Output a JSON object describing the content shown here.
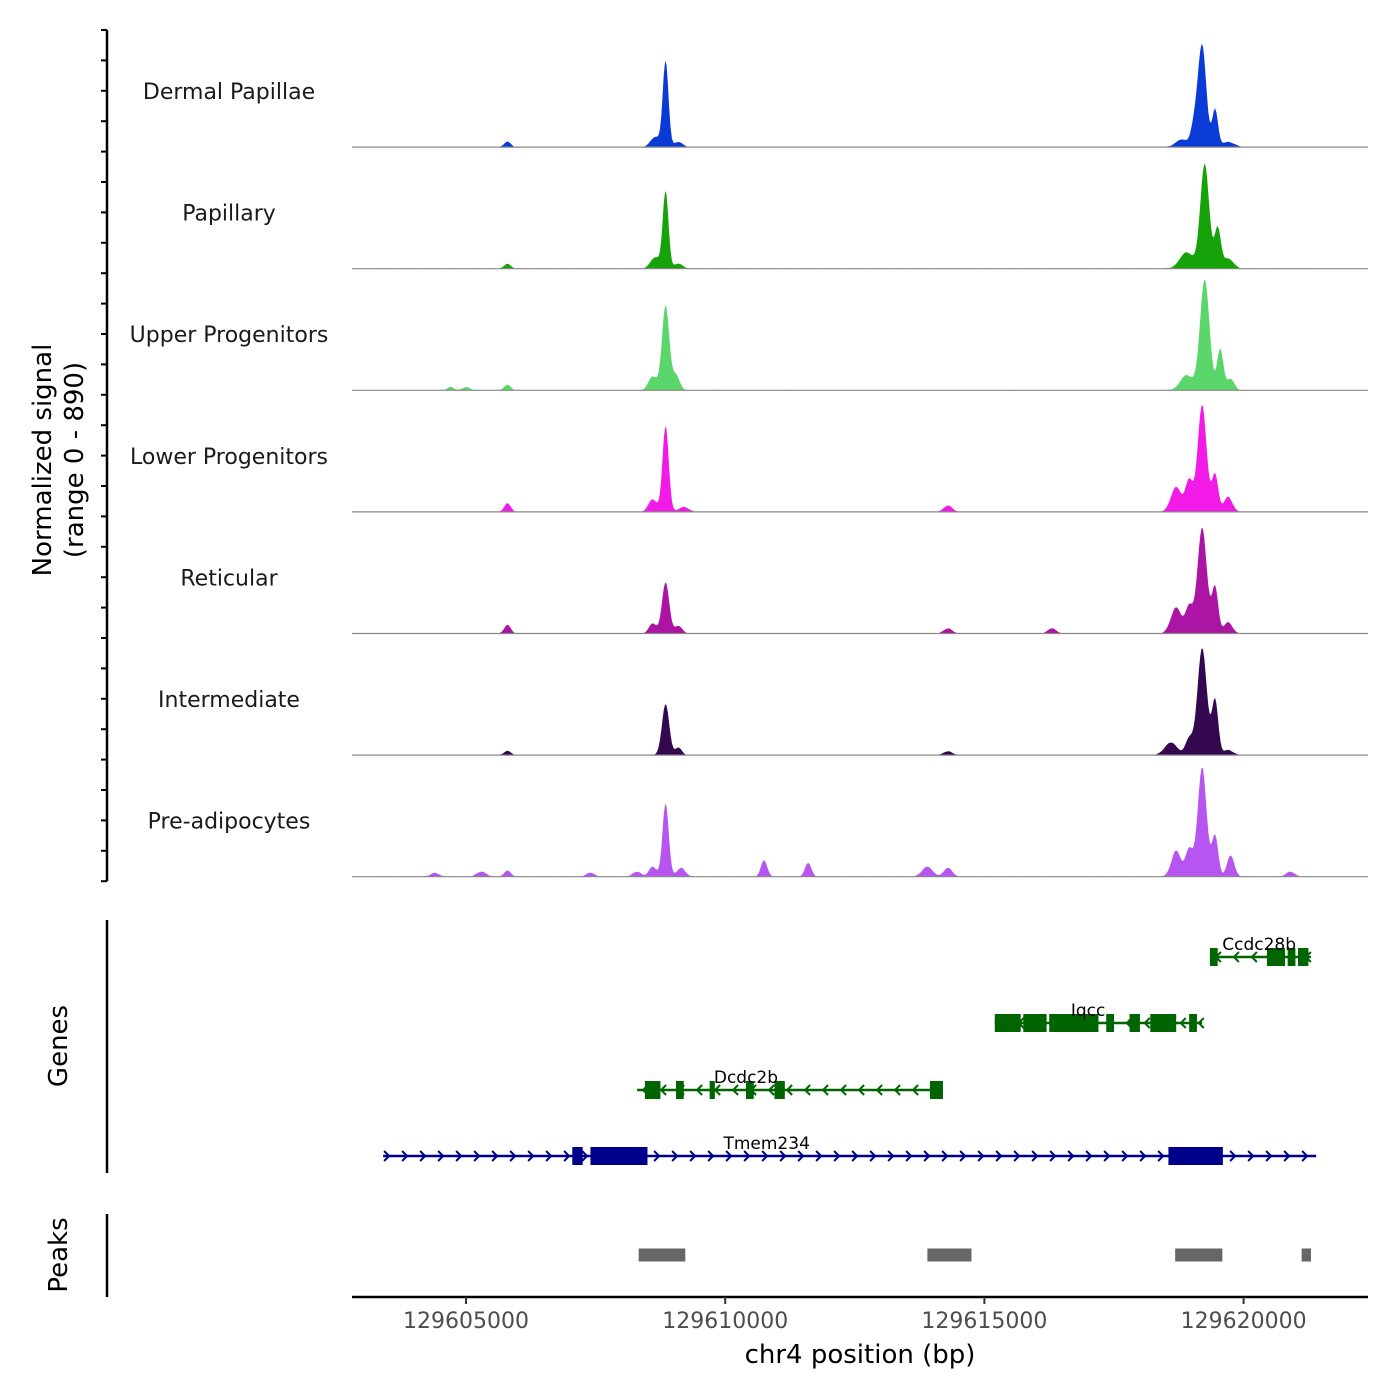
{
  "chart_data": {
    "type": "area",
    "title": "",
    "genome": "chr4",
    "region": [
      129602800,
      129622400
    ],
    "xlabel": "chr4 position (bp)",
    "x_ticks": [
      129605000,
      129610000,
      129615000,
      129620000
    ],
    "x_tick_labels": [
      "129605000",
      "129610000",
      "129615000",
      "129620000"
    ],
    "coverage": {
      "ylabel": "Normalized signal\n(range 0 - 890)",
      "ylabel_line1": "Normalized signal",
      "ylabel_line2": "(range 0 - 890)",
      "ylim": [
        0,
        890
      ],
      "baseline_color": "#888888",
      "tracks": [
        {
          "name": "Dermal Papillae",
          "color": "#0b3bd6",
          "peaks": [
            [
              129605800,
              45,
              60
            ],
            [
              129608650,
              80,
              90
            ],
            [
              129608850,
              690,
              55
            ],
            [
              129609100,
              40,
              80
            ],
            [
              129618800,
              60,
              110
            ],
            [
              129619050,
              160,
              70
            ],
            [
              129619200,
              810,
              80
            ],
            [
              129619450,
              300,
              55
            ],
            [
              129619700,
              40,
              120
            ]
          ]
        },
        {
          "name": "Papillary",
          "color": "#16a30a",
          "peaks": [
            [
              129605800,
              40,
              60
            ],
            [
              129608650,
              90,
              90
            ],
            [
              129608850,
              620,
              55
            ],
            [
              129609100,
              40,
              80
            ],
            [
              129618900,
              130,
              130
            ],
            [
              129619250,
              840,
              85
            ],
            [
              129619500,
              320,
              60
            ],
            [
              129619700,
              80,
              100
            ]
          ]
        },
        {
          "name": "Upper Progenitors",
          "color": "#5ad66a",
          "peaks": [
            [
              129604700,
              25,
              60
            ],
            [
              129605000,
              25,
              70
            ],
            [
              129605800,
              45,
              60
            ],
            [
              129608600,
              110,
              80
            ],
            [
              129608850,
              680,
              70
            ],
            [
              129609050,
              120,
              70
            ],
            [
              129618900,
              120,
              120
            ],
            [
              129619250,
              890,
              90
            ],
            [
              129619550,
              330,
              60
            ],
            [
              129619750,
              90,
              70
            ]
          ]
        },
        {
          "name": "Lower Progenitors",
          "color": "#f21ae6",
          "peaks": [
            [
              129605800,
              70,
              60
            ],
            [
              129608600,
              100,
              80
            ],
            [
              129608850,
              690,
              60
            ],
            [
              129609200,
              40,
              90
            ],
            [
              129614300,
              50,
              80
            ],
            [
              129618700,
              200,
              100
            ],
            [
              129618950,
              250,
              70
            ],
            [
              129619200,
              860,
              85
            ],
            [
              129619450,
              300,
              60
            ],
            [
              129619700,
              120,
              80
            ]
          ]
        },
        {
          "name": "Reticular",
          "color": "#ac14a3",
          "peaks": [
            [
              129605800,
              70,
              60
            ],
            [
              129608600,
              80,
              70
            ],
            [
              129608850,
              410,
              70
            ],
            [
              129609100,
              60,
              70
            ],
            [
              129614300,
              40,
              80
            ],
            [
              129616300,
              40,
              80
            ],
            [
              129618700,
              210,
              100
            ],
            [
              129618950,
              210,
              70
            ],
            [
              129619200,
              850,
              90
            ],
            [
              129619450,
              370,
              60
            ],
            [
              129619700,
              90,
              80
            ]
          ]
        },
        {
          "name": "Intermediate",
          "color": "#33084f",
          "peaks": [
            [
              129605800,
              35,
              60
            ],
            [
              129608850,
              410,
              70
            ],
            [
              129609100,
              60,
              60
            ],
            [
              129614300,
              30,
              80
            ],
            [
              129618600,
              100,
              120
            ],
            [
              129618950,
              130,
              70
            ],
            [
              129619200,
              860,
              90
            ],
            [
              129619450,
              440,
              60
            ],
            [
              129619700,
              40,
              90
            ]
          ]
        },
        {
          "name": "Pre-adipocytes",
          "color": "#b655ef",
          "peaks": [
            [
              129604400,
              30,
              80
            ],
            [
              129605300,
              40,
              90
            ],
            [
              129605800,
              50,
              60
            ],
            [
              129607400,
              30,
              80
            ],
            [
              129608300,
              40,
              80
            ],
            [
              129608600,
              80,
              70
            ],
            [
              129608850,
              590,
              60
            ],
            [
              129609150,
              70,
              80
            ],
            [
              129610750,
              130,
              60
            ],
            [
              129611600,
              110,
              60
            ],
            [
              129613900,
              80,
              100
            ],
            [
              129614300,
              70,
              80
            ],
            [
              129618700,
              210,
              90
            ],
            [
              129618950,
              220,
              70
            ],
            [
              129619200,
              880,
              85
            ],
            [
              129619450,
              330,
              60
            ],
            [
              129619750,
              170,
              70
            ],
            [
              129620900,
              40,
              80
            ]
          ]
        }
      ]
    },
    "genes": {
      "ylabel": "Genes",
      "color_forward": "#00008b",
      "color_reverse": "#006400",
      "items": [
        {
          "name": "Ccdc28b",
          "strand": "-",
          "row": 0,
          "start": 129619350,
          "end": 129621300,
          "label_pos": 129620300,
          "exons": [
            [
              129619350,
              129619500
            ],
            [
              129620450,
              129620800
            ],
            [
              129620850,
              129621000
            ],
            [
              129621050,
              129621250
            ]
          ]
        },
        {
          "name": "Iqcc",
          "strand": "-",
          "row": 1,
          "start": 129615200,
          "end": 129619200,
          "label_pos": 129617000,
          "exons": [
            [
              129615200,
              129615700
            ],
            [
              129615750,
              129616200
            ],
            [
              129616250,
              129617200
            ],
            [
              129617350,
              129617500
            ],
            [
              129617800,
              129618000
            ],
            [
              129618200,
              129618700
            ],
            [
              129618950,
              129619100
            ]
          ]
        },
        {
          "name": "Dcdc2b",
          "strand": "-",
          "row": 2,
          "start": 129608300,
          "end": 129614200,
          "label_pos": 129610400,
          "exons": [
            [
              129608450,
              129608750
            ],
            [
              129609050,
              129609200
            ],
            [
              129609700,
              129609800
            ],
            [
              129610400,
              129610550
            ],
            [
              129610950,
              129611150
            ],
            [
              129613950,
              129614200
            ]
          ]
        },
        {
          "name": "Tmem234",
          "strand": "+",
          "row": 3,
          "start": 129603400,
          "end": 129621400,
          "label_pos": 129610800,
          "exons": [
            [
              129607050,
              129607250
            ],
            [
              129607400,
              129608500
            ],
            [
              129618550,
              129619600
            ]
          ]
        }
      ]
    },
    "peak_regions": {
      "ylabel": "Peaks",
      "color": "#666666",
      "regions": [
        [
          129608330,
          129609230
        ],
        [
          129613900,
          129614750
        ],
        [
          129618680,
          129619590
        ],
        [
          129621120,
          129621300
        ]
      ]
    }
  }
}
